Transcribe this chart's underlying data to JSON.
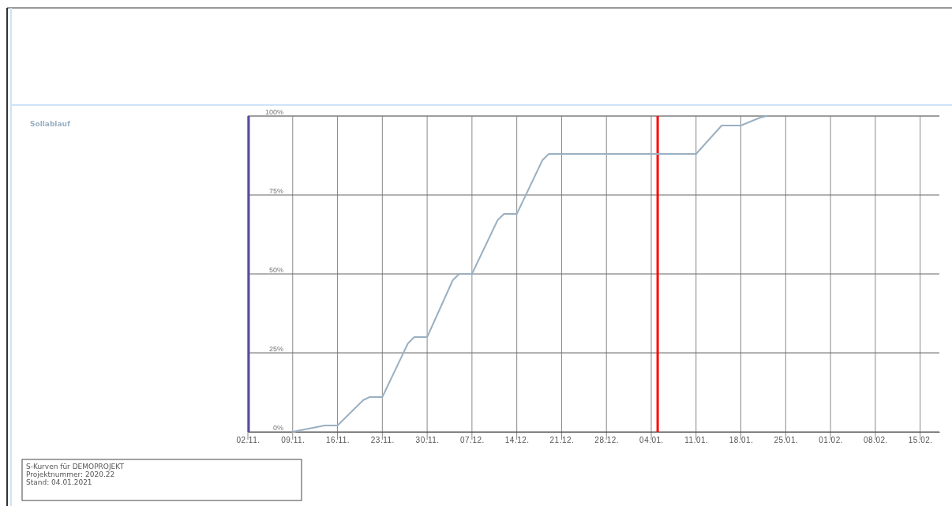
{
  "chart_data": {
    "type": "line",
    "x": [
      "2020-11-09",
      "2020-11-14",
      "2020-11-16",
      "2020-11-20",
      "2020-11-21",
      "2020-11-23",
      "2020-11-27",
      "2020-11-28",
      "2020-11-30",
      "2020-12-04",
      "2020-12-05",
      "2020-12-07",
      "2020-12-11",
      "2020-12-12",
      "2020-12-14",
      "2020-12-18",
      "2020-12-19",
      "2021-01-11",
      "2021-01-15",
      "2021-01-16",
      "2021-01-18",
      "2021-01-21",
      "2021-01-22"
    ],
    "series": [
      {
        "name": "Sollablauf",
        "color": "#9ab0c2",
        "values": [
          0,
          2,
          2,
          10,
          11,
          11,
          28,
          30,
          30,
          48,
          50,
          50,
          67,
          69,
          69,
          86,
          88,
          88,
          97,
          97,
          97,
          99.5,
          100
        ]
      }
    ],
    "xlim": [
      "2020-11-02",
      "2021-02-18"
    ],
    "xticks": [
      {
        "value": "2020-11-02",
        "label": "02.11."
      },
      {
        "value": "2020-11-09",
        "label": "09.11."
      },
      {
        "value": "2020-11-16",
        "label": "16.11."
      },
      {
        "value": "2020-11-23",
        "label": "23.11."
      },
      {
        "value": "2020-11-30",
        "label": "30.11."
      },
      {
        "value": "2020-12-07",
        "label": "07.12."
      },
      {
        "value": "2020-12-14",
        "label": "14.12."
      },
      {
        "value": "2020-12-21",
        "label": "21.12."
      },
      {
        "value": "2020-12-28",
        "label": "28.12."
      },
      {
        "value": "2021-01-04",
        "label": "04.01."
      },
      {
        "value": "2021-01-11",
        "label": "11.01."
      },
      {
        "value": "2021-01-18",
        "label": "18.01."
      },
      {
        "value": "2021-01-25",
        "label": "25.01."
      },
      {
        "value": "2021-02-01",
        "label": "01.02."
      },
      {
        "value": "2021-02-08",
        "label": "08.02."
      },
      {
        "value": "2021-02-15",
        "label": "15.02."
      }
    ],
    "ylim": [
      0,
      100
    ],
    "yticks": [
      {
        "value": 0,
        "label": "0%"
      },
      {
        "value": 25,
        "label": "25%"
      },
      {
        "value": 50,
        "label": "50%"
      },
      {
        "value": 75,
        "label": "75%"
      },
      {
        "value": 100,
        "label": "100%"
      }
    ],
    "grid": true,
    "legend": "left",
    "marker": "none",
    "line_style": "solid",
    "ref_lines": [
      {
        "axis": "x",
        "value": "2021-01-05",
        "color": "#ff0000"
      }
    ],
    "annotations": [
      "S-Kurven für DEMOPROJEKT",
      "Projektnummer: 2020.22",
      "Stand: 04.01.2021"
    ]
  }
}
